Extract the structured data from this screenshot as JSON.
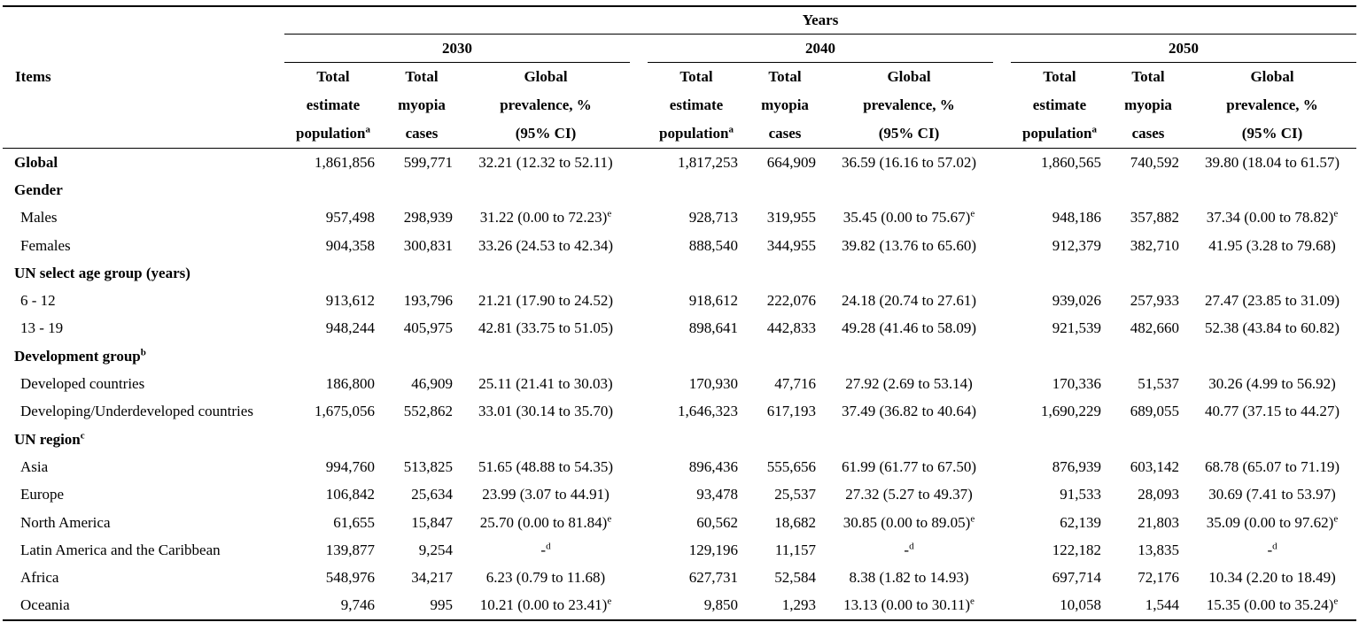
{
  "table": {
    "years_header": "Years",
    "items_header": "Items",
    "year_groups": [
      {
        "label": "2030"
      },
      {
        "label": "2040"
      },
      {
        "label": "2050"
      }
    ],
    "column_defs": [
      {
        "key": "total-estimate-population",
        "lines": [
          "Total",
          "estimate",
          "population"
        ],
        "sup": "a"
      },
      {
        "key": "total-myopia-cases",
        "lines": [
          "Total",
          "myopia",
          "cases"
        ],
        "sup": ""
      },
      {
        "key": "global-prevalence-ci",
        "lines": [
          "Global",
          "prevalence, %",
          "(95% CI)"
        ],
        "sup": ""
      }
    ],
    "rows": [
      {
        "label": "Global",
        "label_sup": "",
        "type": "bold",
        "years": [
          {
            "pop": "1,861,856",
            "cases": "599,771",
            "prev": "32.21 (12.32 to 52.11)",
            "prev_sup": ""
          },
          {
            "pop": "1,817,253",
            "cases": "664,909",
            "prev": "36.59 (16.16 to 57.02)",
            "prev_sup": ""
          },
          {
            "pop": "1,860,565",
            "cases": "740,592",
            "prev": "39.80 (18.04 to 61.57)",
            "prev_sup": ""
          }
        ]
      },
      {
        "label": "Gender",
        "label_sup": "",
        "type": "section",
        "years": null
      },
      {
        "label": "Males",
        "label_sup": "",
        "type": "item",
        "years": [
          {
            "pop": "957,498",
            "cases": "298,939",
            "prev": "31.22 (0.00 to 72.23)",
            "prev_sup": "e"
          },
          {
            "pop": "928,713",
            "cases": "319,955",
            "prev": "35.45 (0.00 to 75.67)",
            "prev_sup": "e"
          },
          {
            "pop": "948,186",
            "cases": "357,882",
            "prev": "37.34 (0.00 to 78.82)",
            "prev_sup": "e"
          }
        ]
      },
      {
        "label": "Females",
        "label_sup": "",
        "type": "item",
        "years": [
          {
            "pop": "904,358",
            "cases": "300,831",
            "prev": "33.26 (24.53 to 42.34)",
            "prev_sup": ""
          },
          {
            "pop": "888,540",
            "cases": "344,955",
            "prev": "39.82 (13.76 to 65.60)",
            "prev_sup": ""
          },
          {
            "pop": "912,379",
            "cases": "382,710",
            "prev": "41.95 (3.28 to 79.68)",
            "prev_sup": ""
          }
        ]
      },
      {
        "label": "UN select age group (years)",
        "label_sup": "",
        "type": "section",
        "years": null
      },
      {
        "label": "6 - 12",
        "label_sup": "",
        "type": "item",
        "years": [
          {
            "pop": "913,612",
            "cases": "193,796",
            "prev": "21.21 (17.90 to 24.52)",
            "prev_sup": ""
          },
          {
            "pop": "918,612",
            "cases": "222,076",
            "prev": "24.18 (20.74 to 27.61)",
            "prev_sup": ""
          },
          {
            "pop": "939,026",
            "cases": "257,933",
            "prev": "27.47 (23.85 to 31.09)",
            "prev_sup": ""
          }
        ]
      },
      {
        "label": "13 - 19",
        "label_sup": "",
        "type": "item",
        "years": [
          {
            "pop": "948,244",
            "cases": "405,975",
            "prev": "42.81 (33.75 to 51.05)",
            "prev_sup": ""
          },
          {
            "pop": "898,641",
            "cases": "442,833",
            "prev": "49.28 (41.46 to 58.09)",
            "prev_sup": ""
          },
          {
            "pop": "921,539",
            "cases": "482,660",
            "prev": "52.38 (43.84 to 60.82)",
            "prev_sup": ""
          }
        ]
      },
      {
        "label": "Development group",
        "label_sup": "b",
        "type": "section",
        "years": null
      },
      {
        "label": "Developed countries",
        "label_sup": "",
        "type": "item",
        "years": [
          {
            "pop": "186,800",
            "cases": "46,909",
            "prev": "25.11 (21.41 to 30.03)",
            "prev_sup": ""
          },
          {
            "pop": "170,930",
            "cases": "47,716",
            "prev": "27.92 (2.69 to 53.14)",
            "prev_sup": ""
          },
          {
            "pop": "170,336",
            "cases": "51,537",
            "prev": "30.26 (4.99 to 56.92)",
            "prev_sup": ""
          }
        ]
      },
      {
        "label": "Developing/Underdeveloped countries",
        "label_sup": "",
        "type": "item",
        "years": [
          {
            "pop": "1,675,056",
            "cases": "552,862",
            "prev": "33.01 (30.14 to 35.70)",
            "prev_sup": ""
          },
          {
            "pop": "1,646,323",
            "cases": "617,193",
            "prev": "37.49 (36.82 to 40.64)",
            "prev_sup": ""
          },
          {
            "pop": "1,690,229",
            "cases": "689,055",
            "prev": "40.77 (37.15 to 44.27)",
            "prev_sup": ""
          }
        ]
      },
      {
        "label": "UN region",
        "label_sup": "c",
        "type": "section",
        "years": null
      },
      {
        "label": "Asia",
        "label_sup": "",
        "type": "item",
        "years": [
          {
            "pop": "994,760",
            "cases": "513,825",
            "prev": "51.65 (48.88 to 54.35)",
            "prev_sup": ""
          },
          {
            "pop": "896,436",
            "cases": "555,656",
            "prev": "61.99 (61.77 to 67.50)",
            "prev_sup": ""
          },
          {
            "pop": "876,939",
            "cases": "603,142",
            "prev": "68.78 (65.07 to 71.19)",
            "prev_sup": ""
          }
        ]
      },
      {
        "label": "Europe",
        "label_sup": "",
        "type": "item",
        "years": [
          {
            "pop": "106,842",
            "cases": "25,634",
            "prev": "23.99 (3.07 to 44.91)",
            "prev_sup": ""
          },
          {
            "pop": "93,478",
            "cases": "25,537",
            "prev": "27.32 (5.27 to 49.37)",
            "prev_sup": ""
          },
          {
            "pop": "91,533",
            "cases": "28,093",
            "prev": "30.69 (7.41 to 53.97)",
            "prev_sup": ""
          }
        ]
      },
      {
        "label": "North America",
        "label_sup": "",
        "type": "item",
        "years": [
          {
            "pop": "61,655",
            "cases": "15,847",
            "prev": "25.70 (0.00 to 81.84)",
            "prev_sup": "e"
          },
          {
            "pop": "60,562",
            "cases": "18,682",
            "prev": "30.85 (0.00 to 89.05)",
            "prev_sup": "e"
          },
          {
            "pop": "62,139",
            "cases": "21,803",
            "prev": "35.09 (0.00 to 97.62)",
            "prev_sup": "e"
          }
        ]
      },
      {
        "label": "Latin America and the Caribbean",
        "label_sup": "",
        "type": "item",
        "years": [
          {
            "pop": "139,877",
            "cases": "9,254",
            "prev": "-",
            "prev_sup": "d"
          },
          {
            "pop": "129,196",
            "cases": "11,157",
            "prev": "-",
            "prev_sup": "d"
          },
          {
            "pop": "122,182",
            "cases": "13,835",
            "prev": "-",
            "prev_sup": "d"
          }
        ]
      },
      {
        "label": "Africa",
        "label_sup": "",
        "type": "item",
        "years": [
          {
            "pop": "548,976",
            "cases": "34,217",
            "prev": "6.23 (0.79 to 11.68)",
            "prev_sup": ""
          },
          {
            "pop": "627,731",
            "cases": "52,584",
            "prev": "8.38 (1.82 to 14.93)",
            "prev_sup": ""
          },
          {
            "pop": "697,714",
            "cases": "72,176",
            "prev": "10.34 (2.20 to 18.49)",
            "prev_sup": ""
          }
        ]
      },
      {
        "label": "Oceania",
        "label_sup": "",
        "type": "item",
        "years": [
          {
            "pop": "9,746",
            "cases": "995",
            "prev": "10.21 (0.00 to 23.41)",
            "prev_sup": "e"
          },
          {
            "pop": "9,850",
            "cases": "1,293",
            "prev": "13.13 (0.00 to 30.11)",
            "prev_sup": "e"
          },
          {
            "pop": "10,058",
            "cases": "1,544",
            "prev": "15.35 (0.00 to 35.24)",
            "prev_sup": "e"
          }
        ]
      }
    ]
  },
  "colors": {
    "text": "#000000",
    "background": "#ffffff",
    "rule": "#000000"
  }
}
